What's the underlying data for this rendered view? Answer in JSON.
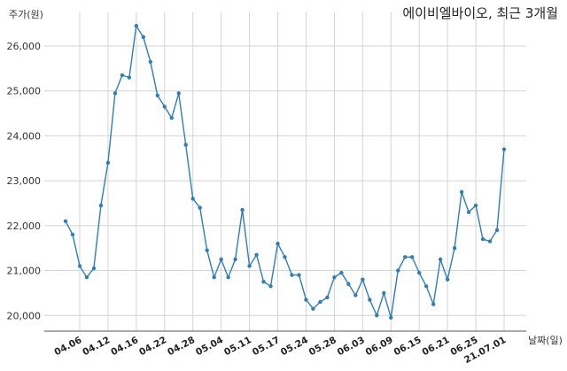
{
  "chart_data": {
    "type": "line",
    "title": "에이비엘바이오, 최근 3개월",
    "xlabel": "날짜(일)",
    "ylabel": "주가(원)",
    "ylim": [
      19650,
      26750
    ],
    "yticks": [
      20000,
      21000,
      22000,
      23000,
      24000,
      25000,
      26000
    ],
    "ytick_labels": [
      "20,000",
      "21,000",
      "22,000",
      "23,000",
      "24,000",
      "25,000",
      "26,000"
    ],
    "xtick_labels": [
      "04.06",
      "04.12",
      "04.16",
      "04.22",
      "04.28",
      "05.04",
      "05.11",
      "05.17",
      "05.24",
      "05.28",
      "06.03",
      "06.09",
      "06.15",
      "06.21",
      "06.25",
      "21.07.01"
    ],
    "xtick_index": [
      2,
      6,
      10,
      14,
      18,
      22,
      26,
      30,
      34,
      38,
      42,
      46,
      50,
      54,
      58,
      62
    ],
    "grid": true,
    "color": "#2f7fb5",
    "series": [
      {
        "values": [
          22100,
          21800,
          21100,
          20850,
          21050,
          22450,
          23400,
          24950,
          25350,
          25300,
          26450,
          26200,
          25650,
          24900,
          24650,
          24400,
          24950,
          23800,
          22600,
          22400,
          21450,
          20850,
          21250,
          20850,
          21250,
          22350,
          21100,
          21350,
          20750,
          20650,
          21600,
          21300,
          20900,
          20900,
          20350,
          20150,
          20300,
          20400,
          20850,
          20950,
          20700,
          20450,
          20800,
          20350,
          20000,
          20500,
          19950,
          21000,
          21300,
          21300,
          20950,
          20650,
          20250,
          21250,
          20800,
          21500,
          22750,
          22300,
          22450,
          21700,
          21650,
          21900,
          23700
        ]
      }
    ]
  }
}
